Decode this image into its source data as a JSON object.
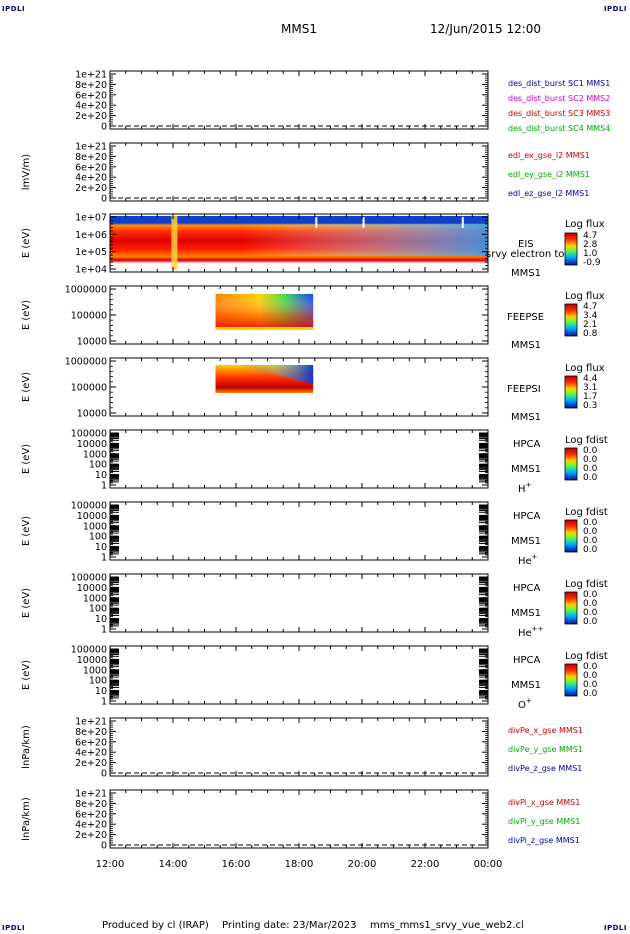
{
  "corners": {
    "tl": "IPDLI",
    "tr": "IPDLI",
    "bl": "IPDLI",
    "br": "IPDLI"
  },
  "header": {
    "title": "MMS1",
    "datetime": "12/Jun/2015 12:00"
  },
  "footer": {
    "produced": "Produced by cl (IRAP)",
    "printing": "Printing date: 23/Mar/2023",
    "script": "mms_mms1_srvy_vue_web2.cl"
  },
  "time_axis": {
    "ticks": [
      "12:00",
      "14:00",
      "16:00",
      "18:00",
      "20:00",
      "22:00",
      "00:00"
    ],
    "range_hours": [
      12,
      24
    ]
  },
  "chart_data": [
    {
      "type": "line",
      "ylabel": "",
      "yticks": [
        "1e+21",
        "8e+20",
        "6e+20",
        "4e+20",
        "2e+20",
        "0"
      ],
      "ylim": [
        0,
        1e+21
      ],
      "zero_line": true,
      "legend": [
        {
          "text": "des_dist_burst SC1 MMS1",
          "color": "#0000aa"
        },
        {
          "text": "des_dist_burst SC2 MMS2",
          "color": "#cc00cc"
        },
        {
          "text": "des_dist_burst SC3 MMS3",
          "color": "#cc0000"
        },
        {
          "text": "des_dist_burst SC4 MMS4",
          "color": "#00aa00"
        }
      ]
    },
    {
      "type": "line",
      "ylabel": "lmV/m)",
      "yticks": [
        "1e+21",
        "8e+20",
        "6e+20",
        "4e+20",
        "2e+20",
        "0"
      ],
      "ylim": [
        0,
        1e+21
      ],
      "zero_line": true,
      "legend": [
        {
          "text": "edl_ex_gse_l2 MMS1",
          "color": "#cc0000"
        },
        {
          "text": "edl_ey_gse_l2 MMS1",
          "color": "#00aa00"
        },
        {
          "text": "edl_ez_gse_l2 MMS1",
          "color": "#0000aa"
        }
      ]
    },
    {
      "type": "heatmap",
      "ylabel": "E (eV)",
      "yticks": [
        "1e+07",
        "1e+06",
        "1e+05",
        "1e+04"
      ],
      "label_main": "EIS",
      "label_overlap": "srvy electron to",
      "label_sc": "MMS1",
      "colorbar_title": "Log flux",
      "colorbar_values": [
        "4.7",
        "2.8",
        "1.0",
        "-0.9"
      ],
      "data_coverage_hours": [
        12,
        24
      ]
    },
    {
      "type": "heatmap",
      "ylabel": "E (eV)",
      "yticks": [
        "1000000",
        "100000",
        "10000"
      ],
      "label_main": "FEEPSE",
      "label_sc": "MMS1",
      "colorbar_title": "Log flux",
      "colorbar_values": [
        "4.7",
        "3.4",
        "2.1",
        "0.8"
      ],
      "data_coverage_hours": [
        15.35,
        18.45
      ]
    },
    {
      "type": "heatmap",
      "ylabel": "E (eV)",
      "yticks": [
        "1000000",
        "100000",
        "10000"
      ],
      "label_main": "FEEPSI",
      "label_sc": "MMS1",
      "colorbar_title": "Log flux",
      "colorbar_values": [
        "4.4",
        "3.1",
        "1.7",
        "0.3"
      ],
      "data_coverage_hours": [
        15.35,
        18.45
      ]
    },
    {
      "type": "heatmap",
      "ylabel": "E (eV)",
      "yticks": [
        "100000",
        "10000",
        "1000",
        "100",
        "10",
        "1"
      ],
      "label_main": "HPCA",
      "label_sc": "MMS1",
      "species": "H",
      "species_charge": "+",
      "colorbar_title": "Log fdist",
      "colorbar_values": [
        "0.0",
        "0.0",
        "0.0",
        "0.0"
      ]
    },
    {
      "type": "heatmap",
      "ylabel": "E (eV)",
      "yticks": [
        "100000",
        "10000",
        "1000",
        "100",
        "10",
        "1"
      ],
      "label_main": "HPCA",
      "label_sc": "MMS1",
      "species": "He",
      "species_charge": "+",
      "colorbar_title": "Log fdist",
      "colorbar_values": [
        "0.0",
        "0.0",
        "0.0",
        "0.0"
      ]
    },
    {
      "type": "heatmap",
      "ylabel": "E (eV)",
      "yticks": [
        "100000",
        "10000",
        "1000",
        "100",
        "10",
        "1"
      ],
      "label_main": "HPCA",
      "label_sc": "MMS1",
      "species": "He",
      "species_charge": "++",
      "colorbar_title": "Log fdist",
      "colorbar_values": [
        "0.0",
        "0.0",
        "0.0",
        "0.0"
      ]
    },
    {
      "type": "heatmap",
      "ylabel": "E (eV)",
      "yticks": [
        "100000",
        "10000",
        "1000",
        "100",
        "10",
        "1"
      ],
      "label_main": "HPCA",
      "label_sc": "MMS1",
      "species": "O",
      "species_charge": "+",
      "colorbar_title": "Log fdist",
      "colorbar_values": [
        "0.0",
        "0.0",
        "0.0",
        "0.0"
      ]
    },
    {
      "type": "line",
      "ylabel": "lnPa/km)",
      "yticks": [
        "1e+21",
        "8e+20",
        "6e+20",
        "4e+20",
        "2e+20",
        "0"
      ],
      "ylim": [
        0,
        1e+21
      ],
      "zero_line": true,
      "legend": [
        {
          "text": "divPe_x_gse MMS1",
          "color": "#cc0000"
        },
        {
          "text": "divPe_y_gse MMS1",
          "color": "#00aa00"
        },
        {
          "text": "divPe_z_gse MMS1",
          "color": "#0000aa"
        }
      ]
    },
    {
      "type": "line",
      "ylabel": "lnPa/km)",
      "yticks": [
        "1e+21",
        "8e+20",
        "6e+20",
        "4e+20",
        "2e+20",
        "0"
      ],
      "ylim": [
        0,
        1e+21
      ],
      "zero_line": true,
      "legend": [
        {
          "text": "divPi_x_gse MMS1",
          "color": "#cc0000"
        },
        {
          "text": "divPi_y_gse MMS1",
          "color": "#00aa00"
        },
        {
          "text": "divPi_z_gse MMS1",
          "color": "#0000aa"
        }
      ]
    }
  ]
}
